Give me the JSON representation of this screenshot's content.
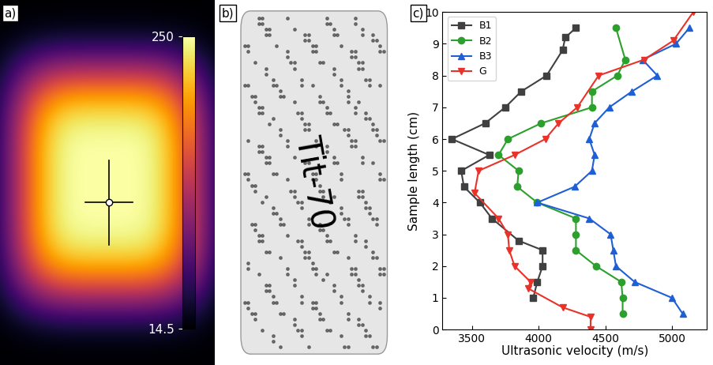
{
  "panel_labels": [
    "a)",
    "b)",
    "c)"
  ],
  "thermal_image": {
    "colorbar_range": [
      14.5,
      250
    ],
    "colorbar_ticks": [
      14.5,
      250
    ]
  },
  "sample_label": "Tit-70",
  "chart_data": {
    "type": "line",
    "xlabel": "Ultrasonic velocity (m/s)",
    "ylabel": "Sample length (cm)",
    "xlim": [
      3280,
      5260
    ],
    "xticks": [
      3500,
      4000,
      4500,
      5000
    ],
    "ylim": [
      0,
      10
    ],
    "yticks": [
      0,
      1,
      2,
      3,
      4,
      5,
      6,
      7,
      8,
      9,
      10
    ],
    "legend": "upper left",
    "series": [
      {
        "name": "B1",
        "color": "#404040",
        "marker": "square",
        "x": [
          4280,
          4200,
          4180,
          4060,
          3870,
          3750,
          3600,
          3350,
          3630,
          3420,
          3440,
          3560,
          3650,
          3850,
          4030,
          4030,
          3990,
          3960
        ],
        "y": [
          9.5,
          9.2,
          8.8,
          8.0,
          7.5,
          7.0,
          6.5,
          6.0,
          5.5,
          5.0,
          4.5,
          4.0,
          3.5,
          2.8,
          2.5,
          2.0,
          1.5,
          1.0
        ]
      },
      {
        "name": "B2",
        "color": "#2ca02c",
        "marker": "circle",
        "x": [
          4580,
          4650,
          4590,
          4400,
          4400,
          4020,
          3770,
          3700,
          3850,
          3840,
          3990,
          4280,
          4280,
          4280,
          4430,
          4620,
          4630,
          4630
        ],
        "y": [
          9.5,
          8.5,
          8.0,
          7.5,
          7.0,
          6.5,
          6.0,
          5.5,
          5.0,
          4.5,
          4.0,
          3.5,
          3.0,
          2.5,
          2.0,
          1.5,
          1.0,
          0.5
        ]
      },
      {
        "name": "B3",
        "color": "#1f5fd6",
        "marker": "triangle_up",
        "x": [
          5130,
          5030,
          4780,
          4890,
          4700,
          4530,
          4420,
          4380,
          4420,
          4400,
          4270,
          3990,
          4380,
          4540,
          4560,
          4580,
          4720,
          5000,
          5080
        ],
        "y": [
          9.5,
          9.0,
          8.5,
          8.0,
          7.5,
          7.0,
          6.5,
          6.0,
          5.5,
          5.0,
          4.5,
          4.0,
          3.5,
          3.0,
          2.5,
          2.0,
          1.5,
          1.0,
          0.5
        ]
      },
      {
        "name": "G",
        "color": "#e8322a",
        "marker": "triangle_down",
        "x": [
          5160,
          5010,
          4790,
          4450,
          4290,
          4150,
          4050,
          3820,
          3550,
          3520,
          3700,
          3770,
          3780,
          3820,
          3940,
          3920,
          4180,
          4390,
          4390
        ],
        "y": [
          10.0,
          9.1,
          8.5,
          8.0,
          7.0,
          6.5,
          6.0,
          5.5,
          5.0,
          4.3,
          3.5,
          3.0,
          2.5,
          2.0,
          1.5,
          1.3,
          0.7,
          0.4,
          0.0
        ]
      }
    ]
  }
}
